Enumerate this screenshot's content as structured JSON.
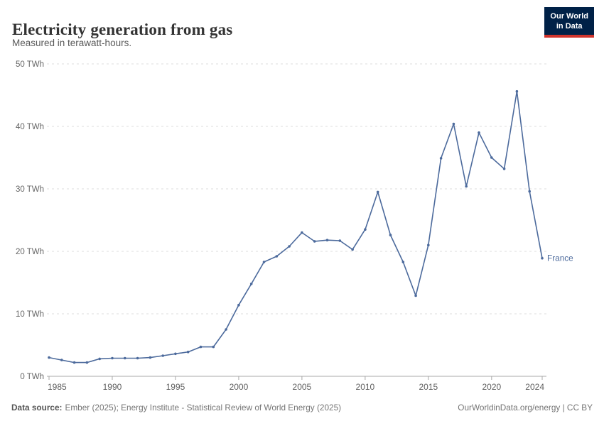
{
  "header": {
    "title": "Electricity generation from gas",
    "subtitle": "Measured in terawatt-hours.",
    "logo": {
      "line1": "Our World",
      "line2": "in Data"
    }
  },
  "footer": {
    "data_source_label": "Data source:",
    "data_source": "Ember (2025); Energy Institute - Statistical Review of World Energy (2025)",
    "link_text": "OurWorldinData.org/energy | CC BY"
  },
  "colors": {
    "series_blue": "#4C6A9C",
    "logo_bg": "#002147",
    "logo_red": "#D0342C",
    "gridline": "#dcdcdc",
    "axis_line": "#a8a8a8",
    "tick_label": "#5f5f5f",
    "y_label": "#666666"
  },
  "chart_data": {
    "type": "line",
    "title": "Electricity generation from gas",
    "subtitle": "Measured in terawatt-hours.",
    "xlabel": "",
    "ylabel": "TWh",
    "xlim": [
      1985,
      2024
    ],
    "ylim": [
      0,
      50
    ],
    "grid": "horizontal-dashed",
    "legend": "end-of-line-label",
    "x_ticks": [
      1985,
      1990,
      1995,
      2000,
      2005,
      2010,
      2015,
      2020,
      2024
    ],
    "y_ticks": [
      0,
      10,
      20,
      30,
      40,
      50
    ],
    "y_tick_labels": [
      "0 TWh",
      "10 TWh",
      "20 TWh",
      "30 TWh",
      "40 TWh",
      "50 TWh"
    ],
    "x": [
      1985,
      1986,
      1987,
      1988,
      1989,
      1990,
      1991,
      1992,
      1993,
      1994,
      1995,
      1996,
      1997,
      1998,
      1999,
      2000,
      2001,
      2002,
      2003,
      2004,
      2005,
      2006,
      2007,
      2008,
      2009,
      2010,
      2011,
      2012,
      2013,
      2014,
      2015,
      2016,
      2017,
      2018,
      2019,
      2020,
      2021,
      2022,
      2023,
      2024
    ],
    "series": [
      {
        "name": "France",
        "color": "#4C6A9C",
        "values": [
          3.0,
          2.6,
          2.2,
          2.2,
          2.8,
          2.9,
          2.9,
          2.9,
          3.0,
          3.3,
          3.6,
          3.9,
          4.7,
          4.7,
          7.5,
          11.4,
          14.8,
          18.3,
          19.2,
          20.8,
          23.0,
          21.6,
          21.8,
          21.7,
          20.3,
          23.5,
          29.5,
          22.6,
          18.3,
          12.9,
          21.0,
          34.9,
          40.4,
          30.4,
          39.0,
          35.0,
          33.2,
          45.6,
          29.6,
          18.9
        ]
      }
    ]
  }
}
